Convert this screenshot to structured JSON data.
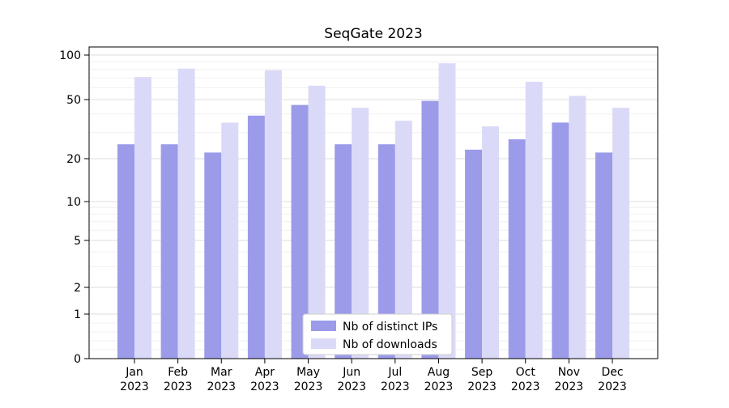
{
  "chart_data": {
    "type": "bar",
    "title": "SeqGate 2023",
    "year_label": "2023",
    "categories": [
      "Jan",
      "Feb",
      "Mar",
      "Apr",
      "May",
      "Jun",
      "Jul",
      "Aug",
      "Sep",
      "Oct",
      "Nov",
      "Dec"
    ],
    "series": [
      {
        "name": "Nb of distinct IPs",
        "color": "#9b9bea",
        "values": [
          25,
          25,
          22,
          39,
          46,
          25,
          25,
          49,
          23,
          27,
          35,
          22
        ]
      },
      {
        "name": "Nb of downloads",
        "color": "#dadaf8",
        "values": [
          71,
          81,
          35,
          79,
          62,
          44,
          36,
          88,
          33,
          66,
          53,
          44
        ]
      }
    ],
    "yscale": "symlog",
    "yticks": [
      0,
      1,
      2,
      5,
      10,
      20,
      50,
      100
    ],
    "ylim": [
      0,
      100
    ],
    "grid": true,
    "legend_position": "lower center"
  }
}
